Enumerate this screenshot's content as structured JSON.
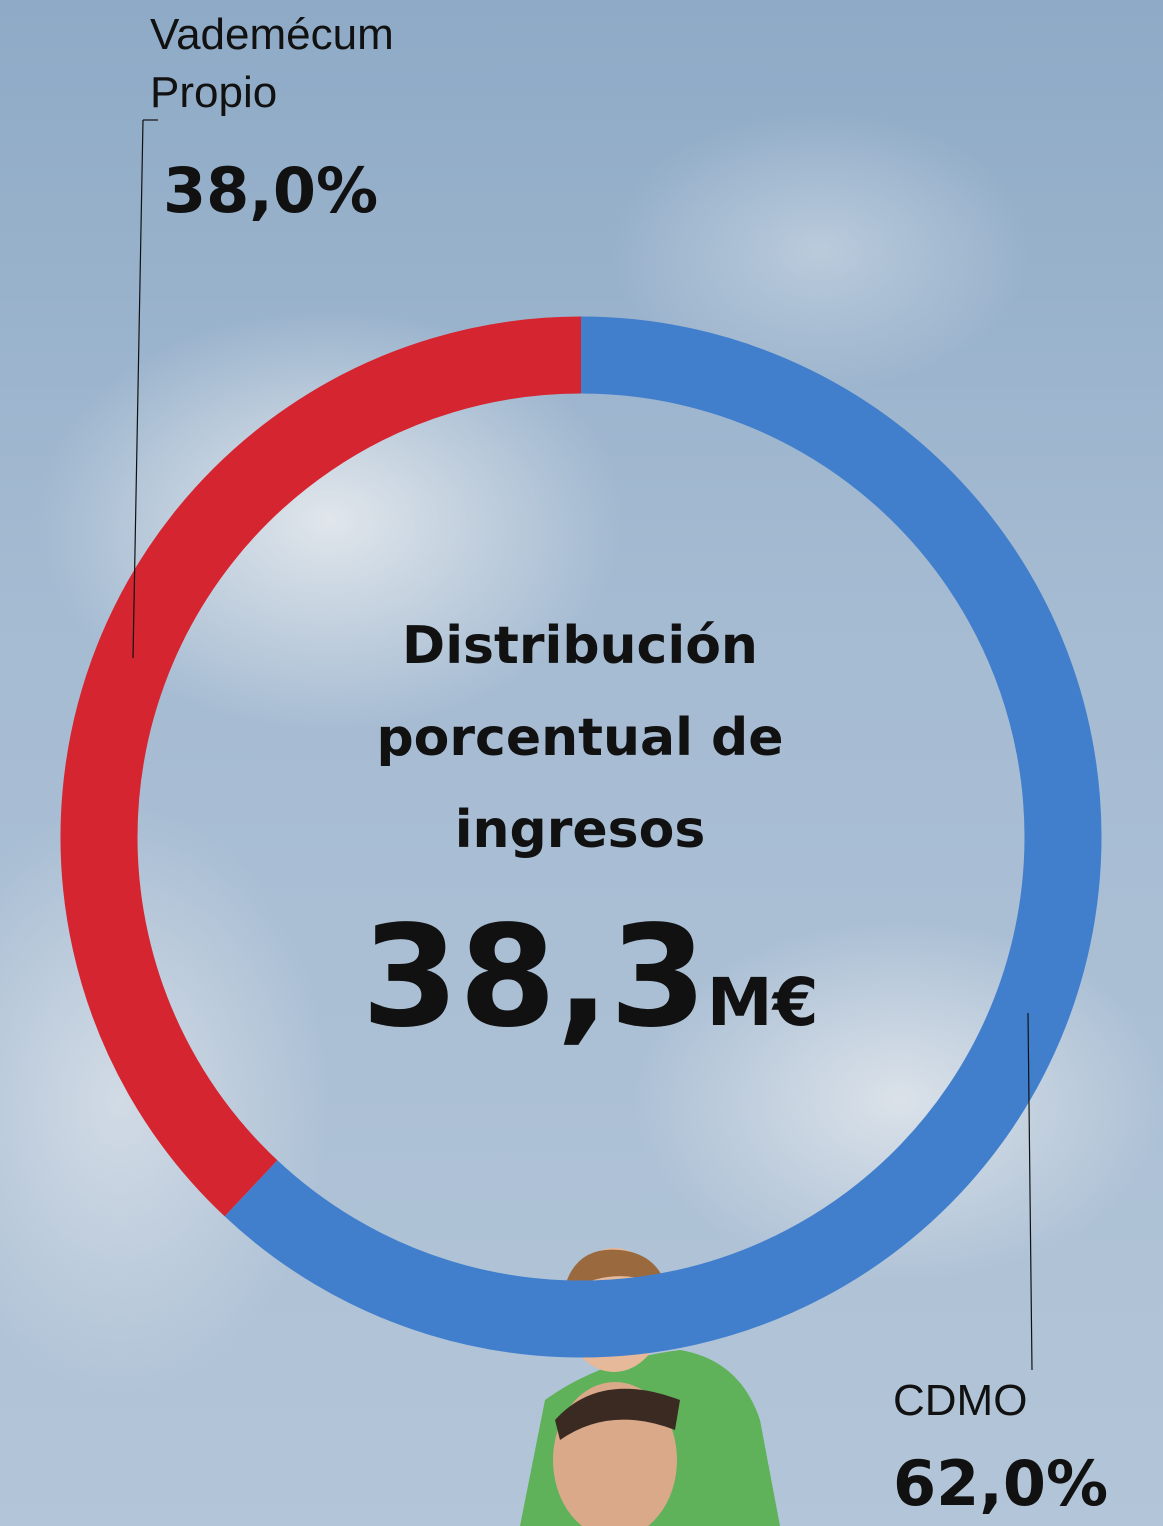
{
  "chart_data": {
    "type": "donut",
    "title": "Distribución porcentual de ingresos",
    "total_label": "38,3",
    "total_unit": "M€",
    "categories": [
      "Vademécum Propio",
      "CDMO"
    ],
    "values": [
      38.0,
      62.0
    ],
    "value_labels": [
      "38,0%",
      "62,0%"
    ],
    "colors": [
      "#d42530",
      "#417fcd"
    ]
  }
}
